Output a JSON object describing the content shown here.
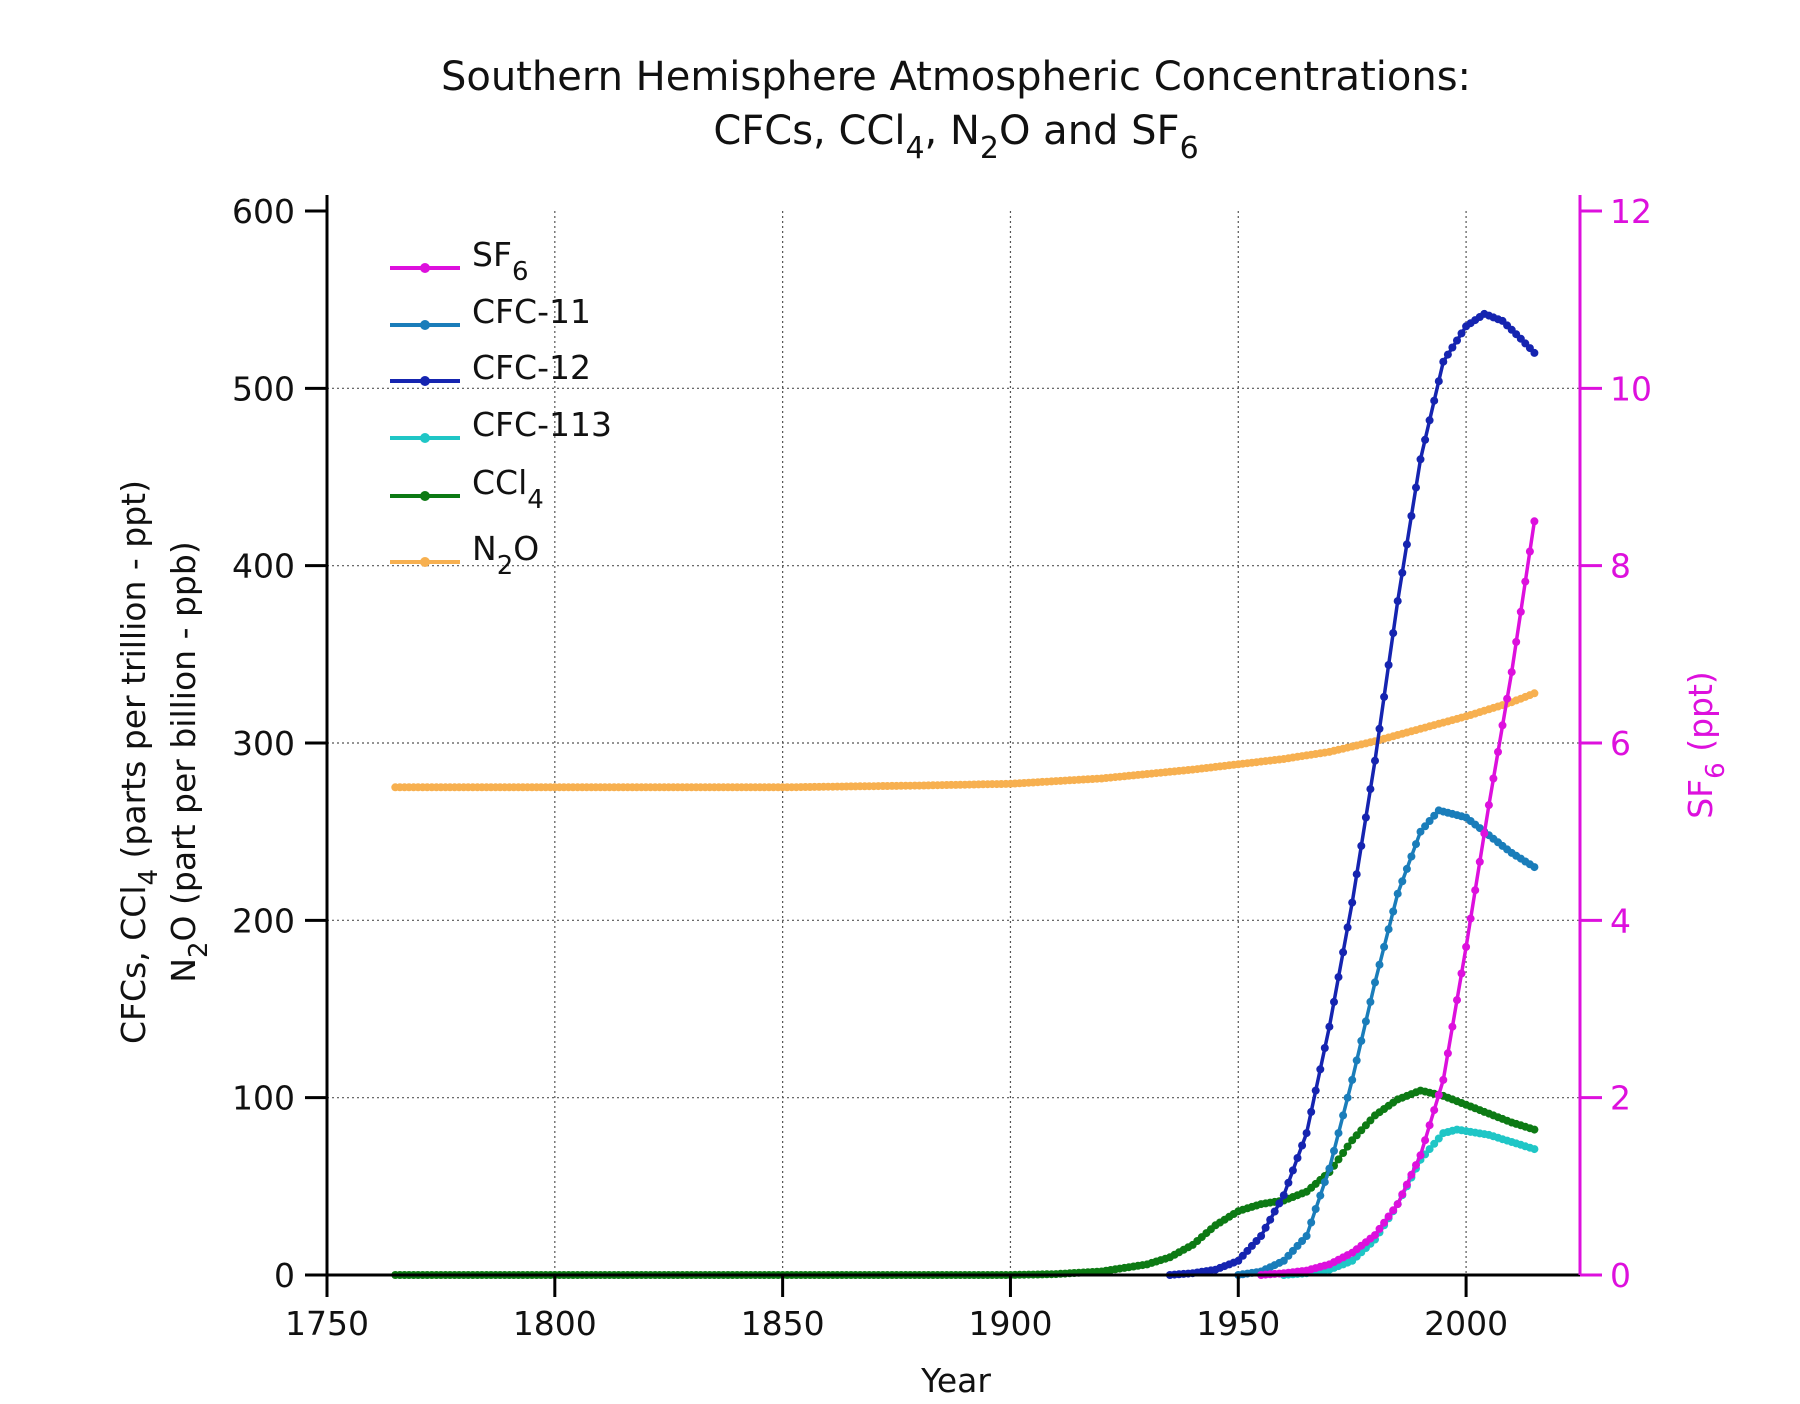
{
  "chart_data": {
    "type": "line",
    "title_line1": "Southern Hemisphere Atmospheric Concentrations:",
    "title_line2": {
      "a": "CFCs, CCl",
      "b": "4",
      "c": ", N",
      "d": "2",
      "e": "O and SF",
      "f": "6"
    },
    "xlabel": "Year",
    "ylabel_left_line1": {
      "a": "CFCs, CCl",
      "b": "4",
      "c": " (parts per trillion - ppt)"
    },
    "ylabel_left_line2": {
      "a": "N",
      "b": "2",
      "c": "O (part per billion - ppb)"
    },
    "ylabel_right": {
      "a": "SF",
      "b": "6",
      "c": " (ppt)"
    },
    "xlim": [
      1750,
      2025
    ],
    "ylim_left": [
      0,
      600
    ],
    "ylim_right": [
      0,
      12
    ],
    "x_ticks": [
      1750,
      1800,
      1850,
      1900,
      1950,
      2000
    ],
    "y_ticks_left": [
      0,
      100,
      200,
      300,
      400,
      500,
      600
    ],
    "y_ticks_right": [
      0,
      2,
      4,
      6,
      8,
      10,
      12
    ],
    "grid": true,
    "legend_position": "top-left",
    "series": [
      {
        "name": "SF",
        "name_sub": "6",
        "color": "#dd10dd",
        "axis": "right",
        "points": [
          [
            1955,
            0
          ],
          [
            1960,
            0.02
          ],
          [
            1965,
            0.05
          ],
          [
            1970,
            0.12
          ],
          [
            1975,
            0.25
          ],
          [
            1980,
            0.45
          ],
          [
            1985,
            0.8
          ],
          [
            1990,
            1.35
          ],
          [
            1995,
            2.2
          ],
          [
            2000,
            3.7
          ],
          [
            2005,
            5.3
          ],
          [
            2010,
            6.8
          ],
          [
            2015,
            8.5
          ]
        ]
      },
      {
        "name": "CFC-11",
        "color": "#1a7dba",
        "axis": "left",
        "points": [
          [
            1950,
            0
          ],
          [
            1955,
            2
          ],
          [
            1960,
            8
          ],
          [
            1965,
            22
          ],
          [
            1970,
            60
          ],
          [
            1975,
            110
          ],
          [
            1980,
            165
          ],
          [
            1985,
            215
          ],
          [
            1990,
            250
          ],
          [
            1994,
            262
          ],
          [
            2000,
            258
          ],
          [
            2005,
            248
          ],
          [
            2010,
            238
          ],
          [
            2015,
            230
          ]
        ]
      },
      {
        "name": "CFC-12",
        "color": "#1524b0",
        "axis": "left",
        "points": [
          [
            1935,
            0
          ],
          [
            1940,
            1
          ],
          [
            1945,
            3
          ],
          [
            1950,
            8
          ],
          [
            1955,
            22
          ],
          [
            1960,
            45
          ],
          [
            1965,
            80
          ],
          [
            1970,
            140
          ],
          [
            1975,
            210
          ],
          [
            1980,
            290
          ],
          [
            1985,
            380
          ],
          [
            1990,
            460
          ],
          [
            1995,
            515
          ],
          [
            2000,
            535
          ],
          [
            2004,
            542
          ],
          [
            2008,
            538
          ],
          [
            2012,
            528
          ],
          [
            2015,
            520
          ]
        ]
      },
      {
        "name": "CFC-113",
        "color": "#1fc6c6",
        "axis": "left",
        "points": [
          [
            1960,
            0
          ],
          [
            1965,
            1
          ],
          [
            1970,
            3
          ],
          [
            1975,
            8
          ],
          [
            1980,
            20
          ],
          [
            1985,
            40
          ],
          [
            1990,
            65
          ],
          [
            1995,
            80
          ],
          [
            1998,
            82
          ],
          [
            2005,
            79
          ],
          [
            2010,
            75
          ],
          [
            2015,
            71
          ]
        ]
      },
      {
        "name": "CCl",
        "name_sub": "4",
        "color": "#0d7a14",
        "axis": "left",
        "points": [
          [
            1765,
            0
          ],
          [
            1900,
            0
          ],
          [
            1910,
            0.5
          ],
          [
            1920,
            2
          ],
          [
            1930,
            6
          ],
          [
            1935,
            10
          ],
          [
            1940,
            17
          ],
          [
            1945,
            28
          ],
          [
            1950,
            36
          ],
          [
            1955,
            40
          ],
          [
            1960,
            42
          ],
          [
            1965,
            47
          ],
          [
            1970,
            58
          ],
          [
            1975,
            76
          ],
          [
            1980,
            90
          ],
          [
            1985,
            99
          ],
          [
            1990,
            104
          ],
          [
            1995,
            101
          ],
          [
            2000,
            96
          ],
          [
            2005,
            91
          ],
          [
            2010,
            86
          ],
          [
            2015,
            82
          ]
        ]
      },
      {
        "name": "N",
        "name_sub": "2",
        "name_suffix": "O",
        "color": "#f7b050",
        "axis": "left",
        "points": [
          [
            1765,
            275
          ],
          [
            1800,
            275
          ],
          [
            1850,
            275
          ],
          [
            1880,
            276
          ],
          [
            1900,
            277
          ],
          [
            1920,
            280
          ],
          [
            1940,
            285
          ],
          [
            1950,
            288
          ],
          [
            1960,
            291
          ],
          [
            1970,
            295
          ],
          [
            1980,
            301
          ],
          [
            1990,
            308
          ],
          [
            2000,
            315
          ],
          [
            2010,
            323
          ],
          [
            2015,
            328
          ]
        ]
      }
    ]
  }
}
